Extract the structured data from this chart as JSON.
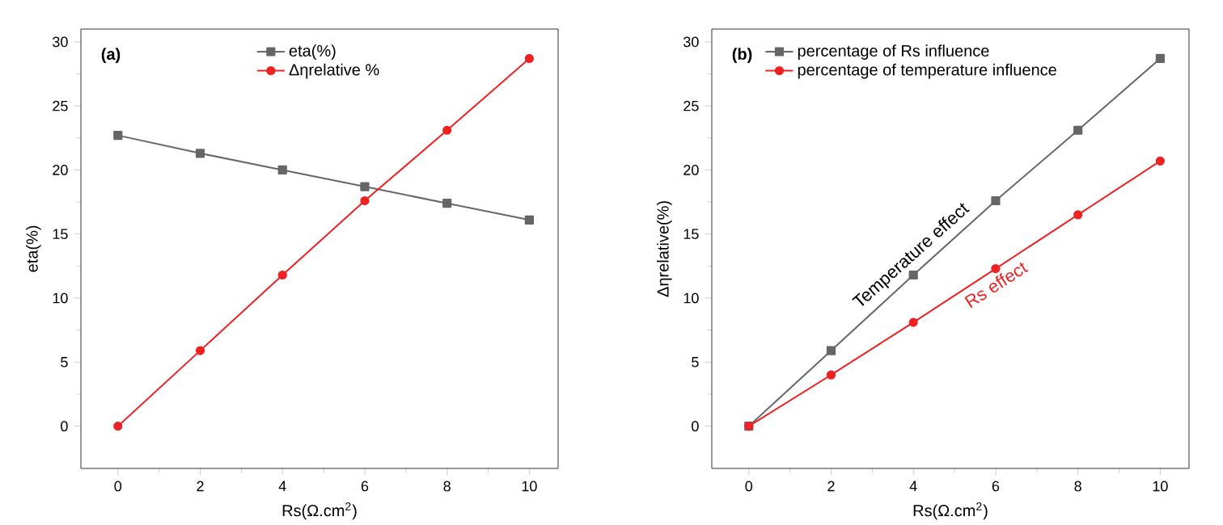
{
  "chart_data": [
    {
      "type": "line",
      "title": "(a)",
      "xlabel": "Rs(Ω.cm$^{2}$)",
      "ylabel": "eta(%)",
      "x": [
        0,
        2,
        4,
        6,
        8,
        10
      ],
      "xlim": [
        -0.9,
        10.7
      ],
      "ylim": [
        -3.3,
        31
      ],
      "xticks": [
        0,
        2,
        4,
        6,
        8,
        10
      ],
      "yticks": [
        0,
        5,
        10,
        15,
        20,
        25,
        30
      ],
      "legend": "top",
      "series": [
        {
          "name": "eta(%)",
          "color": "#666666",
          "marker": "square",
          "values": [
            22.7,
            21.3,
            20.0,
            18.7,
            17.4,
            16.1
          ]
        },
        {
          "name": "Δηrelative %",
          "color": "#ee2222",
          "marker": "circle",
          "values": [
            0,
            5.9,
            11.8,
            17.6,
            23.1,
            28.7
          ]
        }
      ]
    },
    {
      "type": "line",
      "title": "(b)",
      "xlabel": "Rs(Ω.cm$^{2}$)",
      "ylabel": "Δηrelative(%)",
      "x": [
        0,
        2,
        4,
        6,
        8,
        10
      ],
      "xlim": [
        -0.9,
        10.7
      ],
      "ylim": [
        -3.3,
        31
      ],
      "xticks": [
        0,
        2,
        4,
        6,
        8,
        10
      ],
      "yticks": [
        0,
        5,
        10,
        15,
        20,
        25,
        30
      ],
      "legend": "top left",
      "series": [
        {
          "name": "percentage of Rs influence",
          "color": "#666666",
          "marker": "square",
          "values": [
            0,
            5.9,
            11.8,
            17.6,
            23.1,
            28.7
          ]
        },
        {
          "name": "percentage of temperature influence",
          "color": "#ee2222",
          "marker": "circle",
          "values": [
            0,
            4.0,
            8.1,
            12.3,
            16.5,
            20.7
          ]
        }
      ],
      "annotations": [
        "Temperature effect",
        "Rs effect"
      ]
    }
  ]
}
